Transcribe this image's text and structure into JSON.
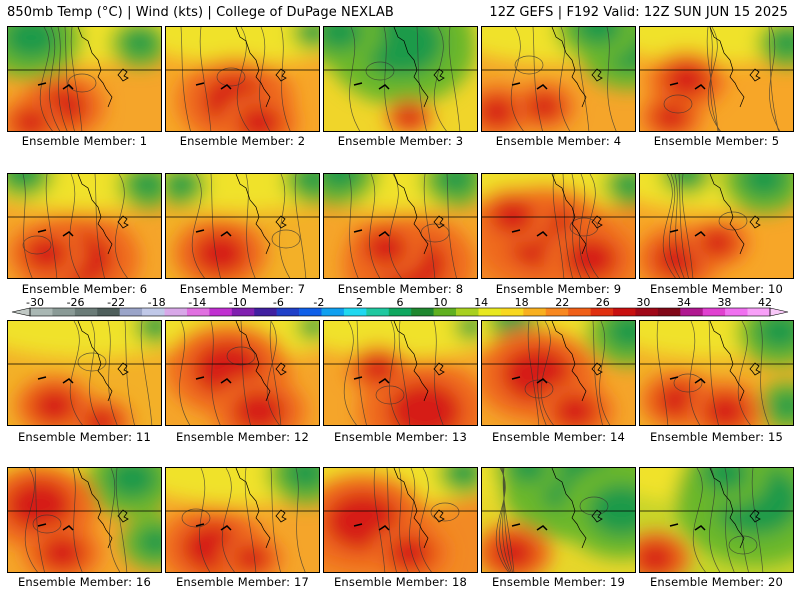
{
  "header": {
    "left": "850mb Temp (°C) | Wind (kts) | College of DuPage NEXLAB",
    "right": "12Z GEFS | F192 Valid: 12Z SUN JUN 15 2025"
  },
  "panels": [
    {
      "label": "Ensemble Member: 1",
      "hot": [
        [
          0.35,
          0.75,
          0.55
        ],
        [
          0.15,
          0.9,
          0.4
        ]
      ],
      "cool": [
        [
          0.15,
          0.1,
          0.6
        ],
        [
          0.85,
          0.15,
          0.35
        ]
      ],
      "bg": "#f5a52a"
    },
    {
      "label": "Ensemble Member: 2",
      "hot": [
        [
          0.45,
          0.7,
          0.75
        ],
        [
          0.6,
          0.9,
          0.5
        ]
      ],
      "cool": [
        [
          0.95,
          0.05,
          0.25
        ]
      ],
      "bg": "#f7a628"
    },
    {
      "label": "Ensemble Member: 3",
      "hot": [
        [
          0.55,
          0.85,
          0.3
        ]
      ],
      "cool": [
        [
          0.5,
          0.15,
          0.9
        ],
        [
          0.1,
          0.05,
          0.5
        ]
      ],
      "bg": "#f0d52a"
    },
    {
      "label": "Ensemble Member: 4",
      "hot": [
        [
          0.1,
          0.8,
          0.45
        ],
        [
          0.4,
          0.75,
          0.4
        ]
      ],
      "cool": [
        [
          0.95,
          0.2,
          0.6
        ],
        [
          0.75,
          0.0,
          0.5
        ]
      ],
      "bg": "#f5a52a"
    },
    {
      "label": "Ensemble Member: 5",
      "hot": [
        [
          0.3,
          0.5,
          0.5
        ],
        [
          0.2,
          0.85,
          0.4
        ]
      ],
      "cool": [
        [
          0.95,
          0.15,
          0.35
        ]
      ],
      "bg": "#f7a628"
    },
    {
      "label": "Ensemble Member: 6",
      "hot": [
        [
          0.45,
          0.8,
          0.8
        ],
        [
          0.25,
          0.75,
          0.5
        ]
      ],
      "cool": [
        [
          0.1,
          0.0,
          0.35
        ],
        [
          0.9,
          0.1,
          0.35
        ]
      ],
      "bg": "#f5a52a"
    },
    {
      "label": "Ensemble Member: 7",
      "hot": [
        [
          0.35,
          0.75,
          0.6
        ]
      ],
      "cool": [
        [
          0.95,
          0.05,
          0.35
        ],
        [
          0.1,
          0.1,
          0.3
        ]
      ],
      "bg": "#f3b028"
    },
    {
      "label": "Ensemble Member: 8",
      "hot": [
        [
          0.55,
          0.85,
          0.85
        ],
        [
          0.4,
          0.7,
          0.5
        ]
      ],
      "cool": [
        [
          0.1,
          0.0,
          0.45
        ],
        [
          0.85,
          0.05,
          0.4
        ]
      ],
      "bg": "#f5a52a"
    },
    {
      "label": "Ensemble Member: 9",
      "hot": [
        [
          0.4,
          0.6,
          0.9
        ],
        [
          0.2,
          0.4,
          0.5
        ],
        [
          0.7,
          0.8,
          0.6
        ]
      ],
      "cool": [
        [
          0.95,
          0.1,
          0.3
        ]
      ],
      "bg": "#f28a24"
    },
    {
      "label": "Ensemble Member: 10",
      "hot": [
        [
          0.25,
          0.8,
          0.55
        ],
        [
          0.5,
          0.65,
          0.4
        ]
      ],
      "cool": [
        [
          0.8,
          0.05,
          0.5
        ],
        [
          0.3,
          0.0,
          0.3
        ]
      ],
      "bg": "#f7a628"
    },
    {
      "label": "Ensemble Member: 11",
      "hot": [
        [
          0.3,
          0.8,
          0.5
        ],
        [
          0.6,
          0.95,
          0.4
        ]
      ],
      "cool": [
        [
          0.95,
          0.05,
          0.25
        ]
      ],
      "bg": "#f3b028"
    },
    {
      "label": "Ensemble Member: 12",
      "hot": [
        [
          0.4,
          0.45,
          0.8
        ],
        [
          0.6,
          0.85,
          0.6
        ]
      ],
      "cool": [
        [
          0.95,
          0.05,
          0.2
        ]
      ],
      "bg": "#f5a52a"
    },
    {
      "label": "Ensemble Member: 13",
      "hot": [
        [
          0.65,
          0.85,
          0.85
        ],
        [
          0.35,
          0.45,
          0.4
        ]
      ],
      "cool": [
        [
          0.95,
          0.05,
          0.2
        ]
      ],
      "bg": "#f5a52a"
    },
    {
      "label": "Ensemble Member: 14",
      "hot": [
        [
          0.35,
          0.5,
          0.8
        ],
        [
          0.6,
          0.85,
          0.5
        ]
      ],
      "cool": [
        [
          0.95,
          0.1,
          0.5
        ],
        [
          0.2,
          0.0,
          0.3
        ]
      ],
      "bg": "#f5a52a"
    },
    {
      "label": "Ensemble Member: 15",
      "hot": [
        [
          0.25,
          0.75,
          0.5
        ],
        [
          0.55,
          0.85,
          0.5
        ]
      ],
      "cool": [
        [
          0.9,
          0.1,
          0.5
        ],
        [
          0.95,
          0.8,
          0.35
        ]
      ],
      "bg": "#f3b028"
    },
    {
      "label": "Ensemble Member: 16",
      "hot": [
        [
          0.2,
          0.35,
          0.75
        ],
        [
          0.35,
          0.8,
          0.5
        ]
      ],
      "cool": [
        [
          0.8,
          0.1,
          0.55
        ],
        [
          0.95,
          0.7,
          0.4
        ]
      ],
      "bg": "#f5a52a"
    },
    {
      "label": "Ensemble Member: 17",
      "hot": [
        [
          0.3,
          0.75,
          0.7
        ],
        [
          0.55,
          0.85,
          0.4
        ]
      ],
      "cool": [
        [
          0.9,
          0.05,
          0.45
        ]
      ],
      "bg": "#f5a52a"
    },
    {
      "label": "Ensemble Member: 18",
      "hot": [
        [
          0.25,
          0.5,
          0.85
        ],
        [
          0.55,
          0.8,
          0.5
        ]
      ],
      "cool": [
        [
          0.9,
          0.05,
          0.3
        ]
      ],
      "bg": "#f28a24"
    },
    {
      "label": "Ensemble Member: 19",
      "hot": [
        [
          0.2,
          0.8,
          0.5
        ]
      ],
      "cool": [
        [
          0.6,
          0.1,
          0.9
        ],
        [
          0.9,
          0.4,
          0.7
        ],
        [
          0.3,
          0.0,
          0.4
        ]
      ],
      "bg": "#e7d62a"
    },
    {
      "label": "Ensemble Member: 20",
      "hot": [
        [
          0.1,
          0.85,
          0.45
        ]
      ],
      "cool": [
        [
          0.75,
          0.3,
          0.95
        ],
        [
          0.55,
          0.05,
          0.5
        ]
      ],
      "bg": "#c8d42a"
    }
  ],
  "colorbar": {
    "ticks": [
      "-30",
      "-26",
      "-22",
      "-18",
      "-14",
      "-10",
      "-6",
      "-2",
      "2",
      "6",
      "10",
      "14",
      "18",
      "22",
      "26",
      "30",
      "34",
      "38",
      "42"
    ],
    "colors": [
      "#a9b7b3",
      "#8a9a96",
      "#6b7c78",
      "#4f5f5c",
      "#9aa4c8",
      "#c0c8e8",
      "#d8a8e8",
      "#e070e0",
      "#c030d0",
      "#8020b0",
      "#4020a0",
      "#2040c8",
      "#1060e8",
      "#10a0f0",
      "#20d8f0",
      "#20c8a0",
      "#10a860",
      "#208830",
      "#60b020",
      "#a8d020",
      "#e8e820",
      "#f8d820",
      "#f8b020",
      "#f88820",
      "#f06018",
      "#e03010",
      "#c81010",
      "#a00818",
      "#800818",
      "#b01890",
      "#e040d0",
      "#f070f0",
      "#f8a0f8"
    ]
  }
}
